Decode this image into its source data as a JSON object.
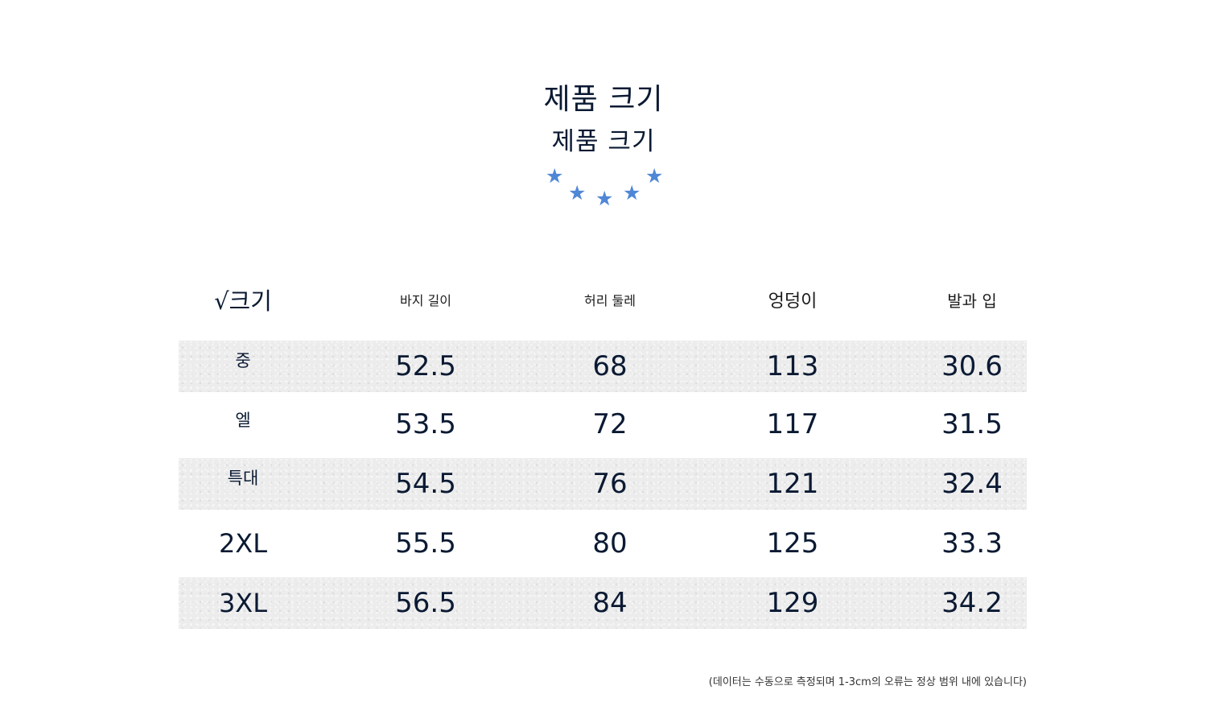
{
  "titles": {
    "main": "제품 크기",
    "sub": "제품 크기"
  },
  "decoration": {
    "star_icon": "star-icon",
    "star_color": "#4f87d6",
    "star_glyph": "★"
  },
  "table": {
    "headers": [
      "√크기",
      "바지 길이",
      "허리 둘레",
      "엉덩이",
      "발과 입"
    ],
    "rows": [
      {
        "size": "중",
        "values": [
          "52.5",
          "68",
          "113",
          "30.6"
        ]
      },
      {
        "size": "엘",
        "values": [
          "53.5",
          "72",
          "117",
          "31.5"
        ]
      },
      {
        "size": "특대",
        "values": [
          "54.5",
          "76",
          "121",
          "32.4"
        ]
      },
      {
        "size": "2XL",
        "values": [
          "55.5",
          "80",
          "125",
          "33.3"
        ]
      },
      {
        "size": "3XL",
        "values": [
          "56.5",
          "84",
          "129",
          "34.2"
        ]
      }
    ],
    "shade_color": "#ececec"
  },
  "footnote": "(데이터는 수동으로 측정되며 1-3cm의 오류는 정상 범위 내에 있습니다)"
}
